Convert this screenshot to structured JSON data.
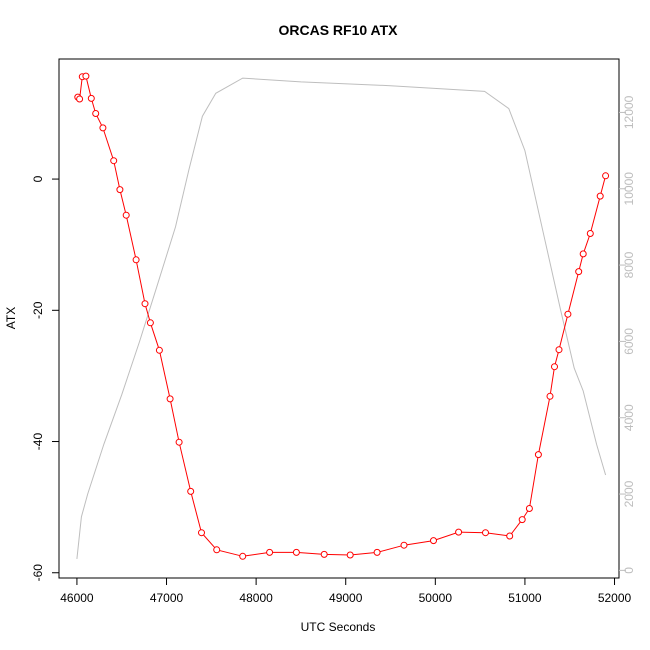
{
  "chart_data": {
    "type": "line",
    "title": "ORCAS RF10 ATX",
    "xlabel": "UTC Seconds",
    "ylabel": "ATX",
    "xlim": [
      45800,
      52050
    ],
    "ylim": [
      -60.8,
      18.3
    ],
    "y2lim": [
      -200,
      13400
    ],
    "x_ticks": [
      46000,
      47000,
      48000,
      49000,
      50000,
      51000,
      52000
    ],
    "y_ticks": [
      -60,
      -40,
      -20,
      0
    ],
    "y2_ticks": [
      0,
      2000,
      4000,
      6000,
      8000,
      10000,
      12000
    ],
    "colors": {
      "series1": "#ff0000",
      "series2": "#bebebe"
    },
    "series": [
      {
        "axis": "left",
        "style": "line-points",
        "x": [
          46010,
          46030,
          46060,
          46100,
          46160,
          46210,
          46290,
          46410,
          46480,
          46550,
          46660,
          46760,
          46820,
          46920,
          47040,
          47140,
          47270,
          47390,
          47560,
          47850,
          48150,
          48450,
          48760,
          49050,
          49350,
          49650,
          49980,
          50260,
          50560,
          50830,
          50970,
          51050,
          51150,
          51280,
          51330,
          51380,
          51480,
          51600,
          51650,
          51730,
          51840,
          51900
        ],
        "y": [
          12.5,
          12.2,
          15.6,
          15.7,
          12.3,
          10.0,
          7.8,
          2.8,
          -1.6,
          -5.5,
          -12.3,
          -19.0,
          -21.9,
          -26.1,
          -33.5,
          -40.1,
          -47.6,
          -53.9,
          -56.5,
          -57.5,
          -56.9,
          -56.9,
          -57.2,
          -57.3,
          -56.9,
          -55.8,
          -55.1,
          -53.8,
          -53.9,
          -54.4,
          -51.9,
          -50.2,
          -42.0,
          -33.1,
          -28.6,
          -26.0,
          -20.6,
          -14.1,
          -11.4,
          -8.3,
          -2.6,
          0.5
        ]
      },
      {
        "axis": "right",
        "style": "line",
        "x": [
          46000,
          46050,
          46120,
          46300,
          46500,
          46700,
          46900,
          47100,
          47250,
          47400,
          47550,
          47850,
          48500,
          49500,
          50550,
          50820,
          51000,
          51200,
          51400,
          51550,
          51650,
          51800,
          51900
        ],
        "y": [
          300,
          1400,
          2000,
          3300,
          4600,
          6000,
          7500,
          9000,
          10500,
          11900,
          12500,
          12900,
          12800,
          12700,
          12550,
          12100,
          11000,
          8900,
          6800,
          5300,
          4700,
          3300,
          2500
        ]
      }
    ]
  }
}
